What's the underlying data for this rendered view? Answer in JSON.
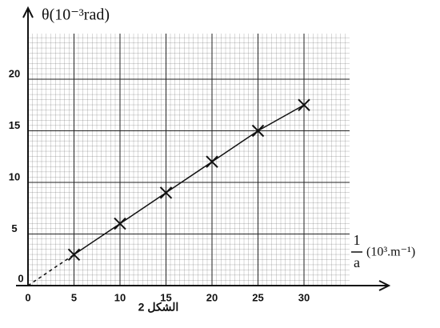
{
  "chart_data": {
    "type": "line",
    "y_label": "θ(10⁻³rad)",
    "x_label_numerator": "1",
    "x_label_denominator": "a",
    "x_unit": "(10³.m⁻¹)",
    "caption": "الشكل 2",
    "origin_label": "0",
    "x": [
      5,
      10,
      15,
      20,
      25,
      30
    ],
    "series": [
      {
        "color": "#111111",
        "values": [
          3,
          6,
          9,
          12,
          15,
          17.5
        ]
      }
    ],
    "xlim": [
      0,
      39
    ],
    "ylim": [
      0,
      26.5
    ],
    "xticks": [
      0,
      5,
      10,
      15,
      20,
      25,
      30
    ],
    "yticks": [
      5,
      10,
      15,
      20
    ],
    "grid": true
  }
}
